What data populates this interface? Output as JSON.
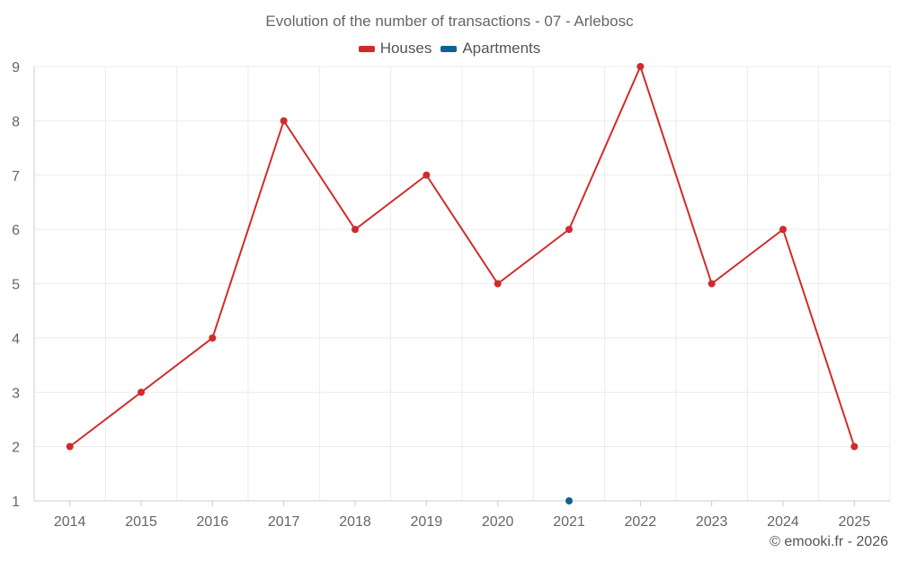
{
  "chart_data": {
    "type": "line",
    "title": "Evolution of the number of transactions - 07 - Arlebosc",
    "categories": [
      "2014",
      "2015",
      "2016",
      "2017",
      "2018",
      "2019",
      "2020",
      "2021",
      "2022",
      "2023",
      "2024",
      "2025"
    ],
    "series": [
      {
        "name": "Houses",
        "color": "#d22a2a",
        "values": [
          2,
          3,
          4,
          8,
          6,
          7,
          5,
          6,
          9,
          5,
          6,
          2
        ]
      },
      {
        "name": "Apartments",
        "color": "#0e6394",
        "values": [
          null,
          null,
          null,
          null,
          null,
          null,
          null,
          1,
          null,
          null,
          null,
          null
        ]
      }
    ],
    "yticks": [
      1,
      2,
      3,
      4,
      5,
      6,
      7,
      8,
      9
    ],
    "ylim": [
      1,
      9
    ],
    "xlabel": "",
    "ylabel": "",
    "grid": true,
    "legend_position": "top-center"
  },
  "credit": "© emooki.fr - 2026"
}
